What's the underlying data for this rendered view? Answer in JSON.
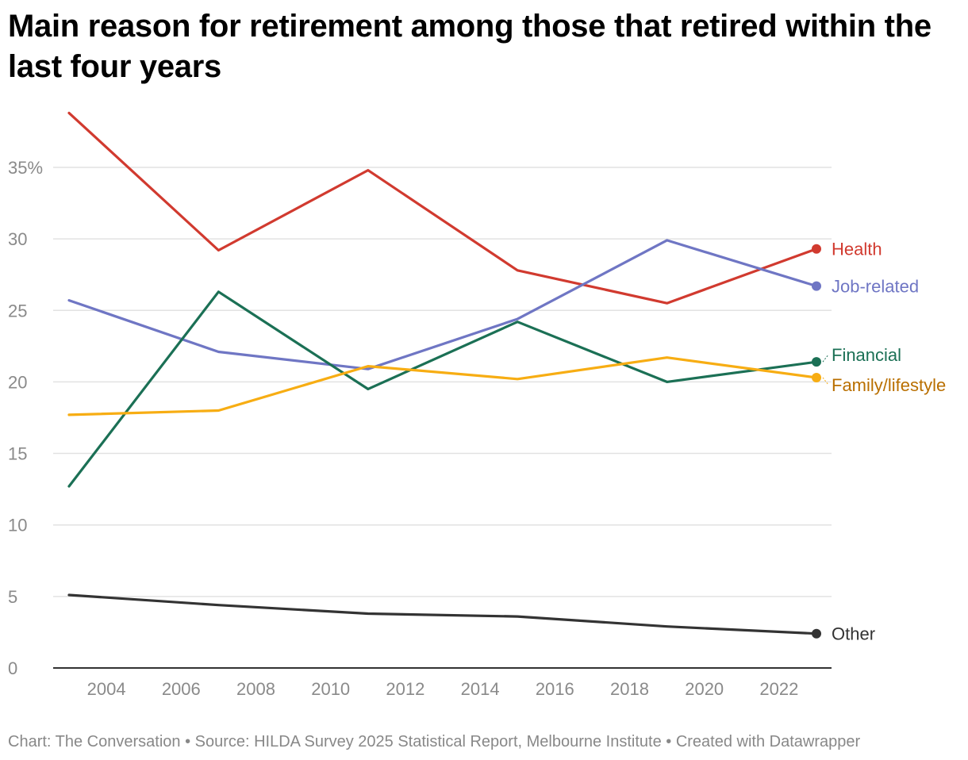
{
  "title": "Main reason for retirement among those that retired within the last four years",
  "footer": {
    "text": "Chart: The Conversation • Source: HILDA Survey 2025 Statistical Report, Melbourne Institute • Created with Datawrapper"
  },
  "chart_data": {
    "type": "line",
    "title": "Main reason for retirement among those that retired within the last four years",
    "xlabel": "",
    "ylabel": "",
    "x": [
      2003,
      2007,
      2011,
      2015,
      2019,
      2023
    ],
    "xlim": [
      2002.5,
      2023.5
    ],
    "ylim": [
      0,
      39
    ],
    "x_ticks": [
      2004,
      2006,
      2008,
      2010,
      2012,
      2014,
      2016,
      2018,
      2020,
      2022
    ],
    "y_ticks": [
      {
        "value": 0,
        "label": "0"
      },
      {
        "value": 5,
        "label": "5"
      },
      {
        "value": 10,
        "label": "10"
      },
      {
        "value": 15,
        "label": "15"
      },
      {
        "value": 20,
        "label": "20"
      },
      {
        "value": 25,
        "label": "25"
      },
      {
        "value": 30,
        "label": "30"
      },
      {
        "value": 35,
        "label": "35%"
      }
    ],
    "grid": true,
    "legend": "direct labels at right end of lines",
    "series": [
      {
        "name": "Health",
        "color": "#d13a2f",
        "label_color": "#d13a2f",
        "values": [
          38.8,
          29.2,
          34.8,
          27.8,
          25.5,
          29.3
        ]
      },
      {
        "name": "Job-related",
        "color": "#6f76c4",
        "label_color": "#6f76c4",
        "values": [
          25.7,
          22.1,
          20.9,
          24.4,
          29.9,
          26.7
        ]
      },
      {
        "name": "Financial",
        "color": "#1b7055",
        "label_color": "#1b7055",
        "values": [
          12.7,
          26.3,
          19.5,
          24.2,
          20.0,
          21.4
        ]
      },
      {
        "name": "Family/lifestyle",
        "color": "#f7ad13",
        "label_color": "#b96f00",
        "values": [
          17.7,
          18.0,
          21.1,
          20.2,
          21.7,
          20.3
        ]
      },
      {
        "name": "Other",
        "color": "#333333",
        "label_color": "#333333",
        "values": [
          5.1,
          4.4,
          3.8,
          3.6,
          2.9,
          2.4
        ]
      }
    ]
  }
}
